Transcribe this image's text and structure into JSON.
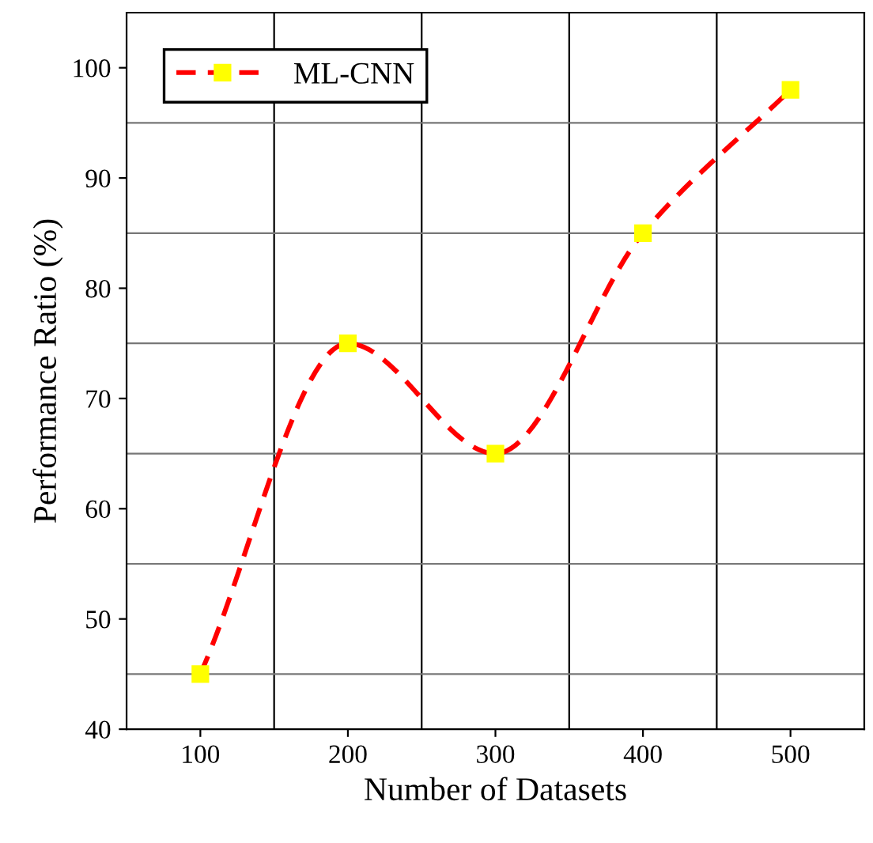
{
  "chart_data": {
    "type": "line",
    "xlabel": "Number of Datasets",
    "ylabel": "Performance Ratio (%)",
    "x": [
      100,
      200,
      300,
      400,
      500
    ],
    "series": [
      {
        "name": "ML-CNN",
        "color": "#ff0000",
        "values": [
          45,
          75,
          65,
          85,
          98
        ]
      }
    ],
    "xlim": [
      50,
      550
    ],
    "ylim": [
      40,
      105
    ],
    "xticks": [
      100,
      200,
      300,
      400,
      500
    ],
    "yticks": [
      40,
      50,
      60,
      70,
      80,
      90,
      100
    ],
    "grid": true,
    "legend": "top left",
    "marker": "square",
    "line_style": "dashed"
  }
}
